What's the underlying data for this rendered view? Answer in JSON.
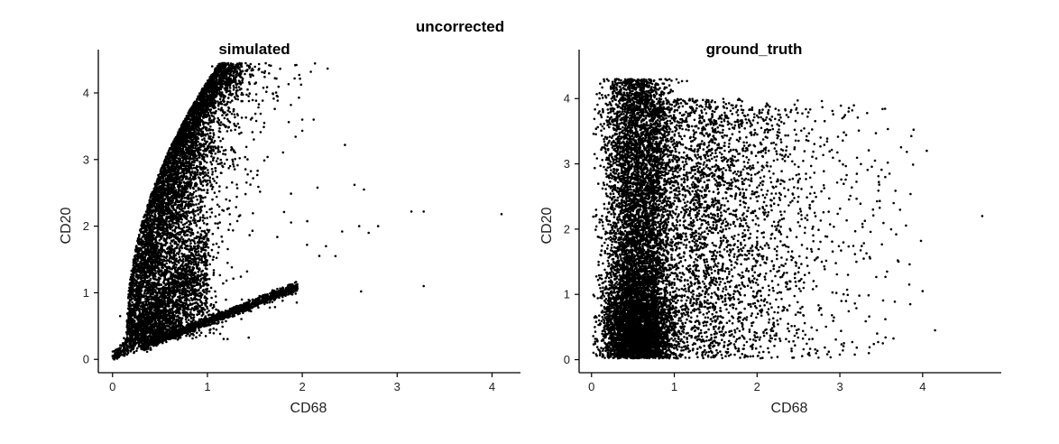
{
  "figure_title": "uncorrected",
  "chart_data": [
    {
      "type": "scatter",
      "title": "simulated",
      "xlabel": "CD68",
      "ylabel": "CD20",
      "xlim": [
        -0.15,
        4.3
      ],
      "ylim": [
        -0.2,
        4.65
      ],
      "xticks": [
        0,
        1,
        2,
        3,
        4
      ],
      "yticks": [
        0,
        1,
        2,
        3,
        4
      ],
      "grid": false,
      "legend": "none",
      "color": "#000000",
      "point_count": 9000,
      "outliers": [
        {
          "x": 4.1,
          "y": 2.18
        },
        {
          "x": 3.28,
          "y": 2.22
        },
        {
          "x": 3.15,
          "y": 2.22
        },
        {
          "x": 3.28,
          "y": 1.1
        },
        {
          "x": 2.62,
          "y": 1.02
        },
        {
          "x": 2.8,
          "y": 2.0
        },
        {
          "x": 2.7,
          "y": 1.9
        },
        {
          "x": 2.6,
          "y": 2.0
        },
        {
          "x": 2.45,
          "y": 3.22
        },
        {
          "x": 2.12,
          "y": 3.6
        },
        {
          "x": 2.0,
          "y": 3.6
        },
        {
          "x": 2.65,
          "y": 2.55
        },
        {
          "x": 2.42,
          "y": 1.92
        },
        {
          "x": 2.35,
          "y": 1.55
        },
        {
          "x": 2.25,
          "y": 1.7
        },
        {
          "x": 2.05,
          "y": 1.72
        },
        {
          "x": 0.08,
          "y": 0.65
        },
        {
          "x": 1.32,
          "y": 3.95
        },
        {
          "x": 1.88,
          "y": 3.82
        },
        {
          "x": 1.05,
          "y": 4.4
        },
        {
          "x": 1.6,
          "y": 3.55
        },
        {
          "x": 2.55,
          "y": 2.62
        }
      ]
    },
    {
      "type": "scatter",
      "title": "ground_truth",
      "xlabel": "CD68",
      "ylabel": "CD20",
      "xlim": [
        -0.15,
        4.95
      ],
      "ylim": [
        -0.2,
        4.75
      ],
      "xticks": [
        0,
        1,
        2,
        3,
        4
      ],
      "yticks": [
        0,
        1,
        2,
        3,
        4
      ],
      "grid": false,
      "legend": "none",
      "color": "#000000",
      "point_count": 12000,
      "outliers": [
        {
          "x": 4.72,
          "y": 2.2
        },
        {
          "x": 4.15,
          "y": 0.45
        },
        {
          "x": 4.05,
          "y": 3.2
        },
        {
          "x": 4.0,
          "y": 1.05
        },
        {
          "x": 3.98,
          "y": 1.82
        },
        {
          "x": 3.68,
          "y": 1.92
        },
        {
          "x": 3.6,
          "y": 2.85
        },
        {
          "x": 3.7,
          "y": 1.52
        },
        {
          "x": 3.55,
          "y": 0.62
        },
        {
          "x": 3.35,
          "y": 0.1
        },
        {
          "x": 3.45,
          "y": 0.4
        },
        {
          "x": 3.85,
          "y": 0.85
        },
        {
          "x": 3.15,
          "y": 3.82
        },
        {
          "x": 3.05,
          "y": 3.72
        },
        {
          "x": 3.2,
          "y": 1.5
        },
        {
          "x": 3.65,
          "y": 2.4
        },
        {
          "x": 3.4,
          "y": 2.3
        }
      ]
    }
  ]
}
